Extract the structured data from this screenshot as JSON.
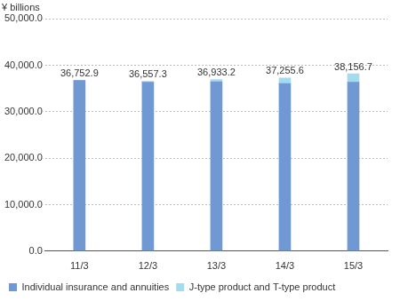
{
  "chart_data": {
    "type": "bar",
    "y_label": "¥ billions",
    "categories": [
      "11/3",
      "12/3",
      "13/3",
      "14/3",
      "15/3"
    ],
    "series": [
      {
        "name": "Individual insurance and annuities",
        "color": "#7098d2",
        "values": [
          36752.9,
          36357.3,
          36433.2,
          36055.6,
          36356.7
        ]
      },
      {
        "name": "J-type product and T-type product",
        "color": "#a3dcef",
        "values": [
          0,
          200,
          500,
          1200,
          1800
        ]
      }
    ],
    "totals": [
      36752.9,
      36557.3,
      36933.2,
      37255.6,
      38156.7
    ],
    "total_labels": [
      "36,752.9",
      "36,557.3",
      "36,933.2",
      "37,255.6",
      "38,156.7"
    ],
    "ylim": [
      0,
      50000
    ],
    "yticks": [
      {
        "value": 0,
        "label": "0.0"
      },
      {
        "value": 10000,
        "label": "10,000.0"
      },
      {
        "value": 20000,
        "label": "20,000.0"
      },
      {
        "value": 30000,
        "label": "30,000.0"
      },
      {
        "value": 40000,
        "label": "40,000.0"
      },
      {
        "value": 50000,
        "label": "50,000.0"
      }
    ],
    "grid": true,
    "stacked": true,
    "legend": "bottom"
  }
}
